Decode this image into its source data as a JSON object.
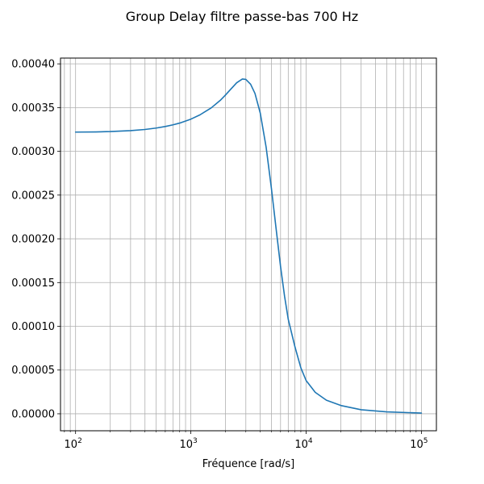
{
  "chart_data": {
    "type": "line",
    "title": "Group Delay filtre passe-bas 700 Hz",
    "xlabel": "Fréquence [rad/s]",
    "ylabel": "",
    "xscale": "log",
    "xlim": [
      74,
      135000
    ],
    "ylim": [
      -1.94e-05,
      0.0004066
    ],
    "grid": true,
    "grid_minor_x": true,
    "x_ticks": [
      100,
      1000,
      10000,
      100000
    ],
    "x_tick_labels": [
      {
        "base": "10",
        "exp": "2"
      },
      {
        "base": "10",
        "exp": "3"
      },
      {
        "base": "10",
        "exp": "4"
      },
      {
        "base": "10",
        "exp": "5"
      }
    ],
    "y_ticks": [
      0,
      5e-05,
      0.0001,
      0.00015,
      0.0002,
      0.00025,
      0.0003,
      0.00035,
      0.0004
    ],
    "y_tick_labels": [
      "0.00000",
      "0.00005",
      "0.00010",
      "0.00015",
      "0.00020",
      "0.00025",
      "0.00030",
      "0.00035",
      "0.00040"
    ],
    "series": [
      {
        "color": "#1f77b4",
        "x": [
          100,
          150,
          200,
          300,
          400,
          500,
          600,
          700,
          800,
          1000,
          1200,
          1500,
          1800,
          2000,
          2200,
          2500,
          2800,
          3000,
          3300,
          3600,
          4000,
          4500,
          5000,
          5500,
          6000,
          6500,
          7000,
          8000,
          9000,
          10000,
          12000,
          15000,
          20000,
          30000,
          50000,
          100000
        ],
        "y": [
          0.000322,
          0.0003222,
          0.0003226,
          0.0003237,
          0.000325,
          0.0003266,
          0.0003284,
          0.0003303,
          0.0003323,
          0.0003368,
          0.0003417,
          0.0003496,
          0.0003583,
          0.0003645,
          0.0003705,
          0.0003784,
          0.0003827,
          0.0003822,
          0.0003767,
          0.0003662,
          0.0003438,
          0.0003047,
          0.0002577,
          0.0002108,
          0.0001685,
          0.0001345,
          0.000108,
          7.66e-05,
          5.26e-05,
          3.8e-05,
          2.45e-05,
          1.55e-05,
          9.5e-06,
          4.6e-06,
          2.2e-06,
          8e-07
        ]
      }
    ]
  }
}
